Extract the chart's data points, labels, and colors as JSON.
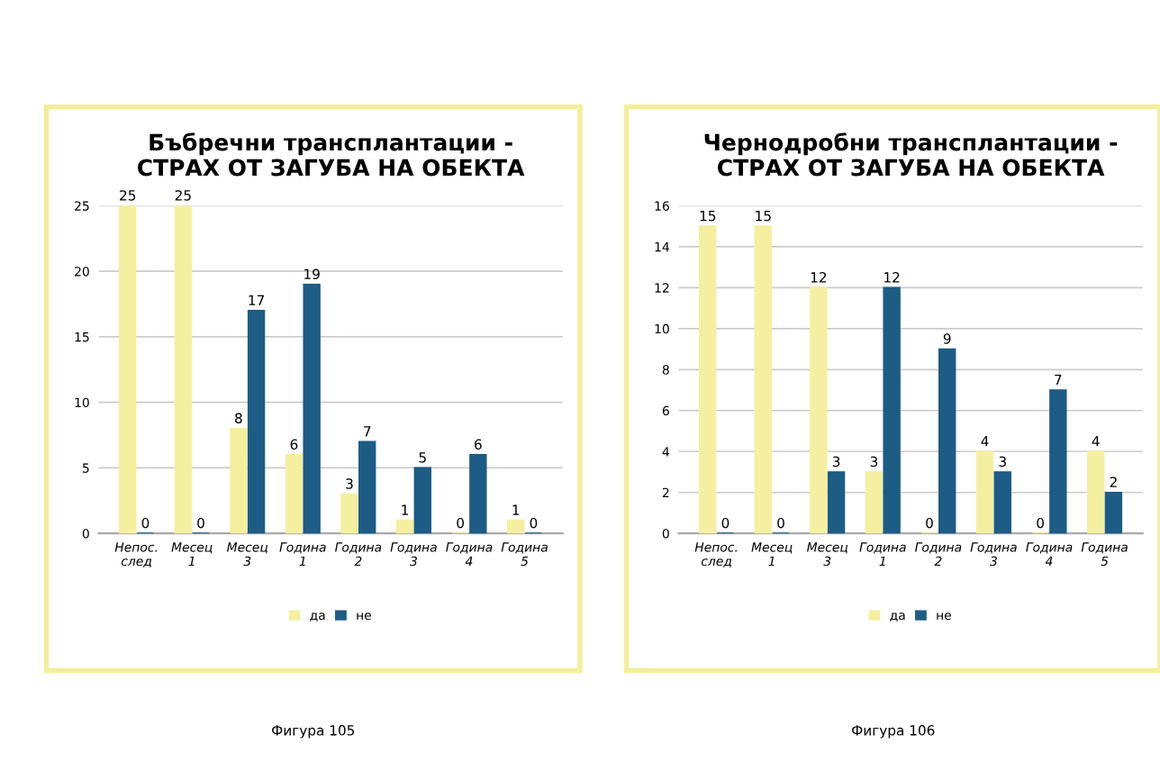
{
  "chart_data": [
    {
      "type": "bar",
      "title": "Бъбречни трансплантации -\nСТРАХ ОТ ЗАГУБА НА ОБЕКТА",
      "categories": [
        "Непос.\nслед",
        "Месец\n1",
        "Месец\n3",
        "Година\n1",
        "Година\n2",
        "Година\n3",
        "Година\n4",
        "Година\n5"
      ],
      "series": [
        {
          "name": "да",
          "color": "#f5f0a0",
          "values": [
            25,
            25,
            8,
            6,
            3,
            1,
            0,
            1
          ]
        },
        {
          "name": "не",
          "color": "#1d5c85",
          "values": [
            0,
            0,
            17,
            19,
            7,
            5,
            6,
            0
          ]
        }
      ],
      "ylim": [
        0,
        25
      ],
      "yticks": [
        0,
        5,
        10,
        15,
        20,
        25
      ],
      "grid": "y",
      "legend": "bottom",
      "data_labels": true,
      "annotations": [
        "Фигура 105"
      ]
    },
    {
      "type": "bar",
      "title": "Чернодробни трансплантации -\nСТРАХ ОТ ЗАГУБА НА ОБЕКТА",
      "categories": [
        "Непос.\nслед",
        "Месец\n1",
        "Месец\n3",
        "Година\n1",
        "Година\n2",
        "Година\n3",
        "Година\n4",
        "Година\n5"
      ],
      "series": [
        {
          "name": "да",
          "color": "#f5f0a0",
          "values": [
            15,
            15,
            12,
            3,
            0,
            4,
            0,
            4
          ]
        },
        {
          "name": "не",
          "color": "#1d5c85",
          "values": [
            0,
            0,
            3,
            12,
            9,
            3,
            7,
            2
          ]
        }
      ],
      "ylim": [
        0,
        16
      ],
      "yticks": [
        0,
        2,
        4,
        6,
        8,
        10,
        12,
        14,
        16
      ],
      "grid": "y",
      "legend": "bottom",
      "data_labels": true,
      "annotations": [
        "Фигура 106"
      ]
    }
  ]
}
